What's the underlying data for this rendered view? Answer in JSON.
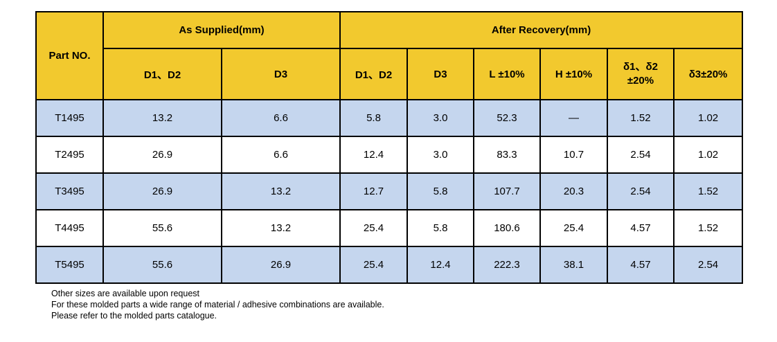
{
  "table": {
    "header": {
      "part_no": "Part NO.",
      "as_supplied": "As Supplied(mm)",
      "after_recovery": "After Recovery(mm)",
      "columns": [
        "D1、D2",
        "D3",
        "D1、D2",
        "D3",
        "L ±10%",
        "H ±10%",
        "δ1、δ2\n±20%",
        "δ3±20%"
      ]
    },
    "rows": [
      [
        "T1495",
        "13.2",
        "6.6",
        "5.8",
        "3.0",
        "52.3",
        "—",
        "1.52",
        "1.02"
      ],
      [
        "T2495",
        "26.9",
        "6.6",
        "12.4",
        "3.0",
        "83.3",
        "10.7",
        "2.54",
        "1.02"
      ],
      [
        "T3495",
        "26.9",
        "13.2",
        "12.7",
        "5.8",
        "107.7",
        "20.3",
        "2.54",
        "1.52"
      ],
      [
        "T4495",
        "55.6",
        "13.2",
        "25.4",
        "5.8",
        "180.6",
        "25.4",
        "4.57",
        "1.52"
      ],
      [
        "T5495",
        "55.6",
        "26.9",
        "25.4",
        "12.4",
        "222.3",
        "38.1",
        "4.57",
        "2.54"
      ]
    ]
  },
  "notes": [
    "Other sizes are available upon request",
    "For these molded parts a wide range of material / adhesive combinations are available.",
    "Please refer to the molded parts catalogue."
  ],
  "colors": {
    "header_bg": "#f2c92e",
    "row_tint": "#c5d6ee",
    "border": "#000000"
  }
}
